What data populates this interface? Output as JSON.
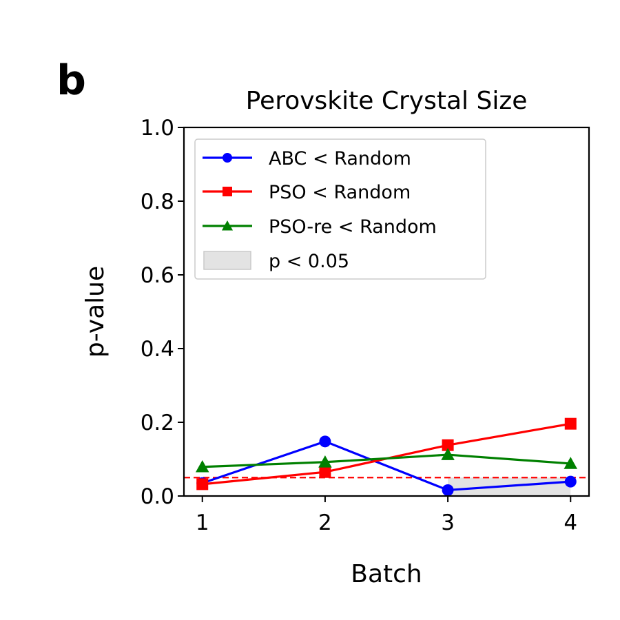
{
  "panel_label": "b",
  "chart_data": {
    "type": "line",
    "title": "Perovskite Crystal Size",
    "xlabel": "Batch",
    "ylabel": "p-value",
    "x": [
      1,
      2,
      3,
      4
    ],
    "xlim": [
      0.85,
      4.15
    ],
    "ylim": [
      0,
      1.0
    ],
    "xticks": [
      "1",
      "2",
      "3",
      "4"
    ],
    "yticks": [
      "0.0",
      "0.2",
      "0.4",
      "0.6",
      "0.8",
      "1.0"
    ],
    "threshold": 0.05,
    "shaded_region": {
      "label": "p < 0.05",
      "x_from": 3,
      "x_to": 4
    },
    "series": [
      {
        "name": "ABC < Random",
        "color": "#0000ff",
        "marker": "circle",
        "values": [
          0.035,
          0.148,
          0.016,
          0.039
        ]
      },
      {
        "name": "PSO < Random",
        "color": "#ff0000",
        "marker": "square",
        "values": [
          0.032,
          0.065,
          0.138,
          0.196
        ]
      },
      {
        "name": "PSO-re < Random",
        "color": "#008000",
        "marker": "triangle",
        "values": [
          0.079,
          0.092,
          0.112,
          0.088
        ]
      }
    ],
    "grid": false,
    "legend_position": "top-left"
  }
}
